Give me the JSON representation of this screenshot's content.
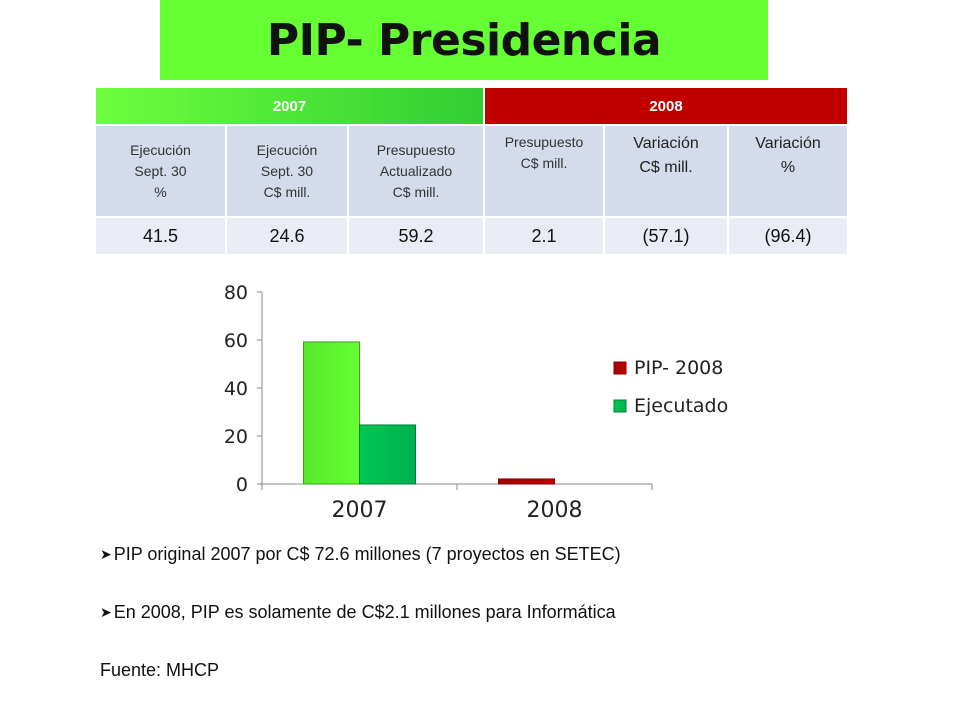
{
  "title": "PIP- Presidencia",
  "table": {
    "year_2007": "2007",
    "year_2008": "2008",
    "headers": [
      [
        "Ejecución",
        "Sept. 30",
        "%"
      ],
      [
        "Ejecución",
        "Sept. 30",
        "C$ mill."
      ],
      [
        "Presupuesto",
        "Actualizado",
        "C$ mill."
      ],
      [
        "Presupuesto",
        "C$ mill."
      ],
      [
        "Variación",
        "C$ mill."
      ],
      [
        "Variación",
        "%"
      ]
    ],
    "values": [
      "41.5",
      "24.6",
      "59.2",
      "2.1",
      "(57.1)",
      "(96.4)"
    ]
  },
  "colors": {
    "banner": "#66ff33",
    "year_2007": "#4cd137",
    "year_2008": "#c00000",
    "pip_2007": "#66ff33",
    "ejecutado": "#00b050",
    "pip_2008": "#c00000"
  },
  "chart_data": {
    "type": "bar",
    "categories": [
      "2007",
      "2008"
    ],
    "series": [
      {
        "name": "PIP- 2008",
        "values": [
          59.2,
          2.1
        ]
      },
      {
        "name": "Ejecutado",
        "values": [
          24.6,
          null
        ]
      }
    ],
    "yticks": [
      0,
      20,
      40,
      60,
      80
    ],
    "ylim": [
      0,
      80
    ],
    "grid": false,
    "legend_position": "right"
  },
  "bullets": [
    "PIP original 2007 por C$ 72.6 millones (7 proyectos en SETEC)",
    "En 2008, PIP es solamente de C$2.1 millones para Informática"
  ],
  "bullet_marker": "➤",
  "source": "Fuente: MHCP"
}
